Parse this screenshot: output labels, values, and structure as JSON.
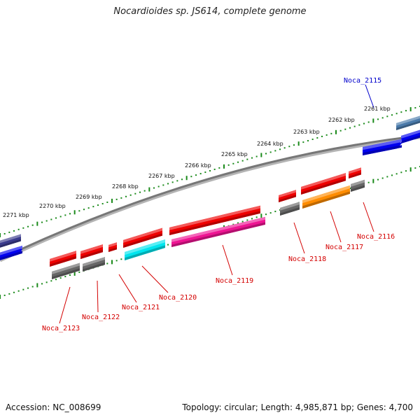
{
  "title": "Nocardioides sp. JS614, complete genome",
  "footer": {
    "accession": "Accession: NC_008699",
    "summary": "Topology: circular; Length: 4,985,871 bp; Genes: 4,700"
  },
  "colors": {
    "backbone": "#777777",
    "tick": "#1a8a1a",
    "label_red": "#d40000",
    "label_blue": "#0000cc",
    "gene_red": "#ee0000",
    "gene_gray": "#666666",
    "gene_blue": "#0000ee",
    "gene_navy": "#3a3a8c",
    "gene_steel": "#4a7aaa",
    "gene_cyan": "#00e5ee",
    "gene_pink": "#ee1493",
    "gene_orange": "#ff8c00"
  },
  "scale_labels": [
    "2261 kbp",
    "2262 kbp",
    "2263 kbp",
    "2264 kbp",
    "2265 kbp",
    "2266 kbp",
    "2267 kbp",
    "2268 kbp",
    "2269 kbp",
    "2270 kbp",
    "2271 kbp"
  ],
  "gene_labels": [
    {
      "text": "Noca_2115",
      "color": "blue"
    },
    {
      "text": "Noca_2116",
      "color": "red"
    },
    {
      "text": "Noca_2117",
      "color": "red"
    },
    {
      "text": "Noca_2118",
      "color": "red"
    },
    {
      "text": "Noca_2119",
      "color": "red"
    },
    {
      "text": "Noca_2120",
      "color": "red"
    },
    {
      "text": "Noca_2121",
      "color": "red"
    },
    {
      "text": "Noca_2122",
      "color": "red"
    },
    {
      "text": "Noca_2123",
      "color": "red"
    }
  ]
}
